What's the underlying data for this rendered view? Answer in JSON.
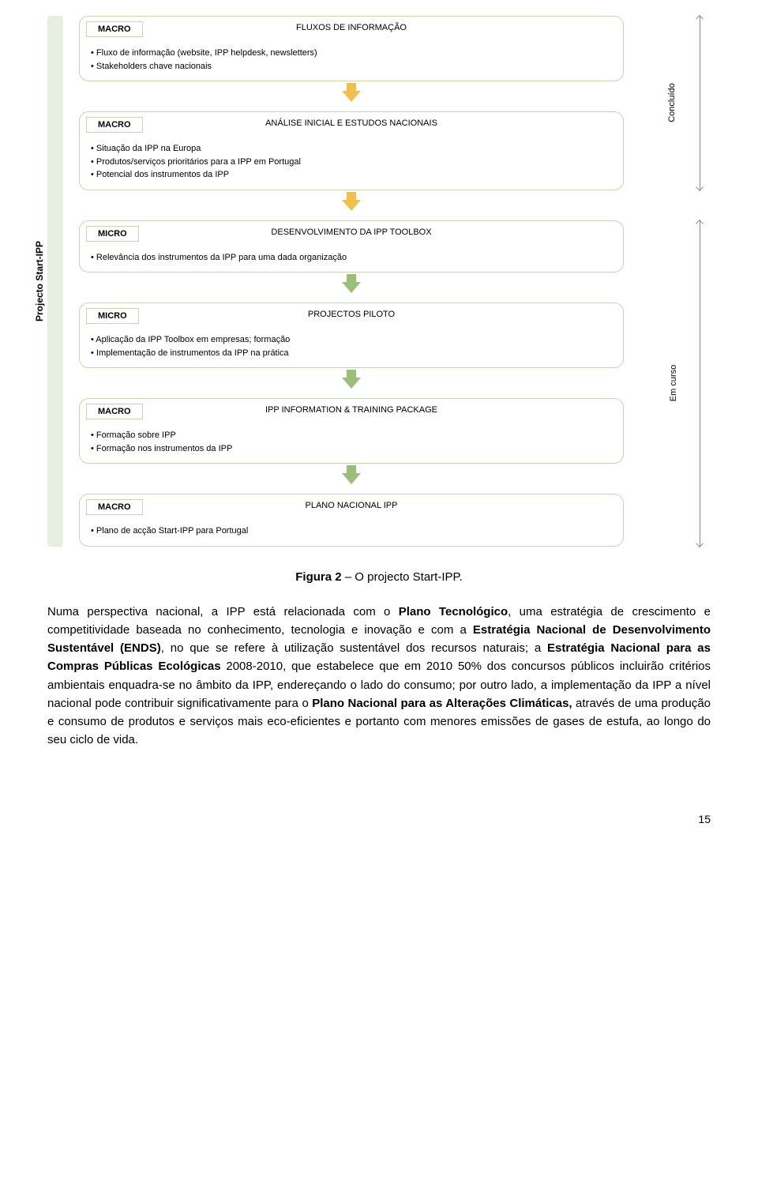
{
  "diagram": {
    "left_label": "Projecto Start-IPP",
    "arrow_colors": {
      "yellow": "#f0c04a",
      "green": "#9bbf7a"
    },
    "stages": [
      {
        "tag": "MACRO",
        "title": "FLUXOS DE INFORMAÇÃO",
        "items": [
          "• Fluxo de informação (website, IPP helpdesk, newsletters)",
          "• Stakeholders chave nacionais"
        ]
      },
      {
        "tag": "MACRO",
        "title": "ANÁLISE INICIAL E ESTUDOS NACIONAIS",
        "items": [
          "• Situação da IPP na Europa",
          "• Produtos/serviços prioritários para a IPP em Portugal",
          "• Potencial dos instrumentos da IPP"
        ]
      },
      {
        "tag": "MICRO",
        "title": "DESENVOLVIMENTO DA IPP TOOLBOX",
        "items": [
          "• Relevância dos instrumentos da IPP para uma dada organização"
        ]
      },
      {
        "tag": "MICRO",
        "title": "PROJECTOS PILOTO",
        "items": [
          "• Aplicação da IPP Toolbox em empresas; formação",
          "• Implementação de instrumentos da IPP na prática"
        ]
      },
      {
        "tag": "MACRO",
        "title": "IPP INFORMATION & TRAINING PACKAGE",
        "items": [
          "• Formação sobre IPP",
          "• Formação nos instrumentos da IPP"
        ]
      },
      {
        "tag": "MACRO",
        "title": "PLANO NACIONAL IPP",
        "items": [
          "• Plano de acção Start-IPP para Portugal"
        ]
      }
    ],
    "brackets": [
      {
        "label": "Concluído",
        "from": 0,
        "to": 1
      },
      {
        "label": "Em curso",
        "from": 2,
        "to": 5
      }
    ]
  },
  "figure_caption_prefix": "Figura 2",
  "figure_caption_rest": " – O projecto Start-IPP.",
  "body_html_parts": [
    "Numa perspectiva nacional, a IPP está relacionada com o ",
    "Plano Tecnológico",
    ", uma estratégia de crescimento e competitividade baseada no conhecimento, tecnologia e inovação e com a ",
    "Estratégia Nacional de Desenvolvimento Sustentável (ENDS)",
    ", no que se refere à utilização sustentável dos recursos naturais; a ",
    "Estratégia Nacional para as Compras Públicas Ecológicas",
    " 2008-2010, que estabelece que em 2010 50% dos concursos públicos incluirão critérios ambientais enquadra-se no âmbito da IPP, endereçando o lado do consumo; por outro lado, a implementação da IPP a nível nacional pode contribuir significativamente para o ",
    "Plano Nacional para as Alterações Climáticas,",
    " através de uma produção e consumo de produtos e serviços mais eco-eficientes e portanto com menores emissões de gases de estufa, ao longo do seu ciclo de vida."
  ],
  "page_number": "15"
}
